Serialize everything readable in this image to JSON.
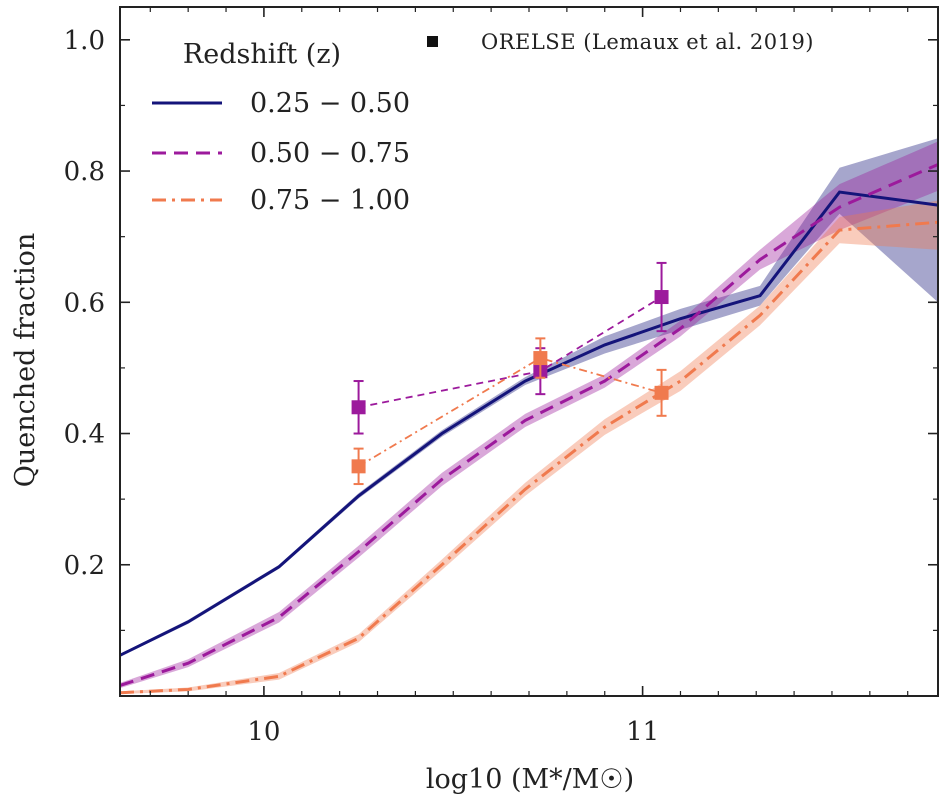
{
  "chart_data": {
    "type": "line",
    "title": "",
    "xlabel": "log10 (M*/M☉)",
    "ylabel": "Quenched fraction",
    "xlim": [
      9.62,
      11.78
    ],
    "ylim": [
      0.0,
      1.05
    ],
    "xticks": [
      10,
      11
    ],
    "xtick_labels": [
      "10",
      "11"
    ],
    "yticks": [
      0.2,
      0.4,
      0.6,
      0.8,
      1.0
    ],
    "ytick_labels": [
      "0.2",
      "0.4",
      "0.6",
      "0.8",
      "1.0"
    ],
    "legend_title": "Redshift (z)",
    "legend_position": "top-left",
    "series": [
      {
        "name": "0.25 − 0.50",
        "color": "#14147a",
        "dash": "solid",
        "x": [
          9.62,
          9.8,
          10.04,
          10.25,
          10.47,
          10.69,
          10.9,
          11.1,
          11.31,
          11.52,
          11.78
        ],
        "y": [
          0.062,
          0.113,
          0.197,
          0.305,
          0.4,
          0.48,
          0.535,
          0.575,
          0.61,
          0.768,
          0.748
        ],
        "band_lower": [
          0.06,
          0.11,
          0.194,
          0.301,
          0.395,
          0.474,
          0.522,
          0.558,
          0.595,
          0.735,
          0.6
        ],
        "band_upper": [
          0.064,
          0.116,
          0.2,
          0.309,
          0.405,
          0.486,
          0.548,
          0.59,
          0.625,
          0.805,
          0.85
        ]
      },
      {
        "name": "0.50 − 0.75",
        "color": "#9c1a9c",
        "dash": "dashed",
        "x": [
          9.62,
          9.8,
          10.04,
          10.25,
          10.47,
          10.69,
          10.9,
          11.1,
          11.31,
          11.52,
          11.78
        ],
        "y": [
          0.016,
          0.05,
          0.12,
          0.22,
          0.33,
          0.42,
          0.48,
          0.56,
          0.665,
          0.745,
          0.81
        ],
        "band_lower": [
          0.012,
          0.044,
          0.112,
          0.211,
          0.32,
          0.41,
          0.47,
          0.548,
          0.65,
          0.71,
          0.77
        ],
        "band_upper": [
          0.02,
          0.056,
          0.128,
          0.229,
          0.34,
          0.43,
          0.49,
          0.572,
          0.68,
          0.78,
          0.845
        ]
      },
      {
        "name": "0.75 − 1.00",
        "color": "#f07a4e",
        "dash": "dashdot",
        "x": [
          9.62,
          9.8,
          10.04,
          10.25,
          10.47,
          10.69,
          10.9,
          11.1,
          11.31,
          11.52,
          11.78
        ],
        "y": [
          0.005,
          0.01,
          0.03,
          0.088,
          0.2,
          0.315,
          0.41,
          0.48,
          0.58,
          0.71,
          0.722
        ],
        "band_lower": [
          0.003,
          0.007,
          0.025,
          0.082,
          0.192,
          0.305,
          0.398,
          0.465,
          0.565,
          0.69,
          0.68
        ],
        "band_upper": [
          0.007,
          0.013,
          0.035,
          0.094,
          0.208,
          0.325,
          0.422,
          0.495,
          0.595,
          0.73,
          0.755
        ]
      }
    ],
    "observations": {
      "name": "ORELSE (Lemaux et al. 2019)",
      "marker_color": "#111111",
      "series": [
        {
          "redshift": "0.50 − 0.75",
          "color": "#9c1a9c",
          "x": [
            10.25,
            10.73,
            11.05
          ],
          "y": [
            0.44,
            0.495,
            0.608
          ],
          "yerr": [
            0.04,
            0.035,
            0.052
          ]
        },
        {
          "redshift": "0.75 − 1.00",
          "color": "#f07a4e",
          "x": [
            10.25,
            10.73,
            11.05
          ],
          "y": [
            0.35,
            0.515,
            0.462
          ],
          "yerr": [
            0.027,
            0.03,
            0.035
          ]
        }
      ]
    }
  }
}
